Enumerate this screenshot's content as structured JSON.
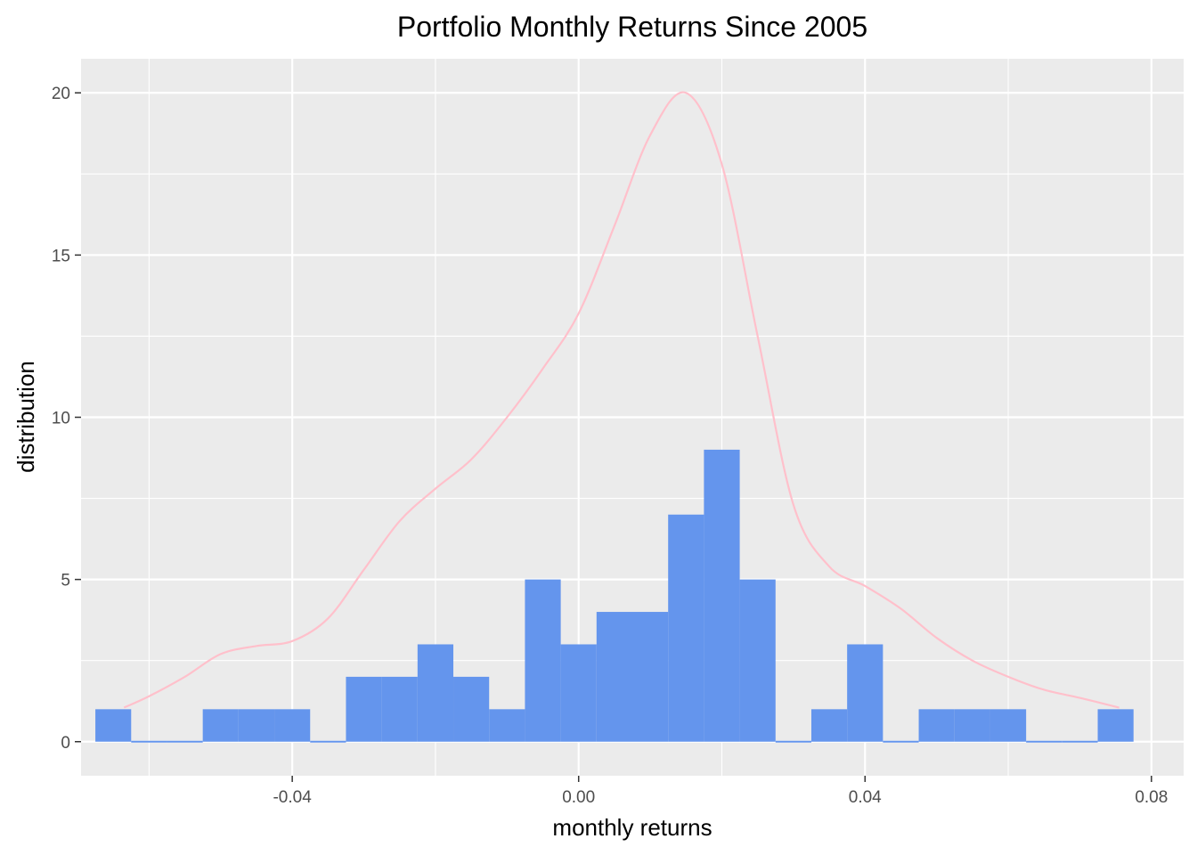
{
  "chart_data": {
    "type": "bar",
    "title": "Portfolio Monthly Returns Since 2005",
    "xlabel": "monthly returns",
    "ylabel": "distribution",
    "xlim": [
      -0.0695,
      0.0845
    ],
    "ylim": [
      -1.05,
      21.05
    ],
    "xticks": [
      -0.04,
      0.0,
      0.04,
      0.08
    ],
    "xtick_labels": [
      "-0.04",
      "0.00",
      "0.04",
      "0.08"
    ],
    "yticks": [
      0,
      5,
      10,
      15,
      20
    ],
    "ytick_labels": [
      "0",
      "5",
      "10",
      "15",
      "20"
    ],
    "grid": true,
    "bin_width": 0.005,
    "histogram": {
      "name": "count",
      "color": "#6495ED",
      "bin_centers": [
        -0.065,
        -0.06,
        -0.055,
        -0.05,
        -0.045,
        -0.04,
        -0.035,
        -0.03,
        -0.025,
        -0.02,
        -0.015,
        -0.01,
        -0.005,
        0.0,
        0.005,
        0.01,
        0.015,
        0.02,
        0.025,
        0.03,
        0.035,
        0.04,
        0.045,
        0.05,
        0.055,
        0.06,
        0.065,
        0.07,
        0.075
      ],
      "counts": [
        1,
        0,
        0,
        1,
        1,
        1,
        0,
        2,
        2,
        3,
        2,
        1,
        5,
        3,
        4,
        4,
        7,
        9,
        5,
        0,
        1,
        3,
        0,
        1,
        1,
        1,
        0,
        0,
        1
      ]
    },
    "density": {
      "name": "density",
      "color": "#FFC0CB",
      "x": [
        -0.0635,
        -0.06,
        -0.055,
        -0.05,
        -0.045,
        -0.04,
        -0.035,
        -0.03,
        -0.025,
        -0.02,
        -0.015,
        -0.01,
        -0.005,
        0.0,
        0.005,
        0.01,
        0.015,
        0.02,
        0.025,
        0.03,
        0.035,
        0.04,
        0.045,
        0.05,
        0.055,
        0.06,
        0.065,
        0.07,
        0.0755
      ],
      "y": [
        1.05,
        1.4,
        2.0,
        2.7,
        2.95,
        3.1,
        3.8,
        5.3,
        6.8,
        7.8,
        8.7,
        10.0,
        11.5,
        13.2,
        15.9,
        18.7,
        20.0,
        17.8,
        12.5,
        7.3,
        5.4,
        4.8,
        4.1,
        3.2,
        2.5,
        2.0,
        1.6,
        1.35,
        1.05
      ]
    }
  }
}
